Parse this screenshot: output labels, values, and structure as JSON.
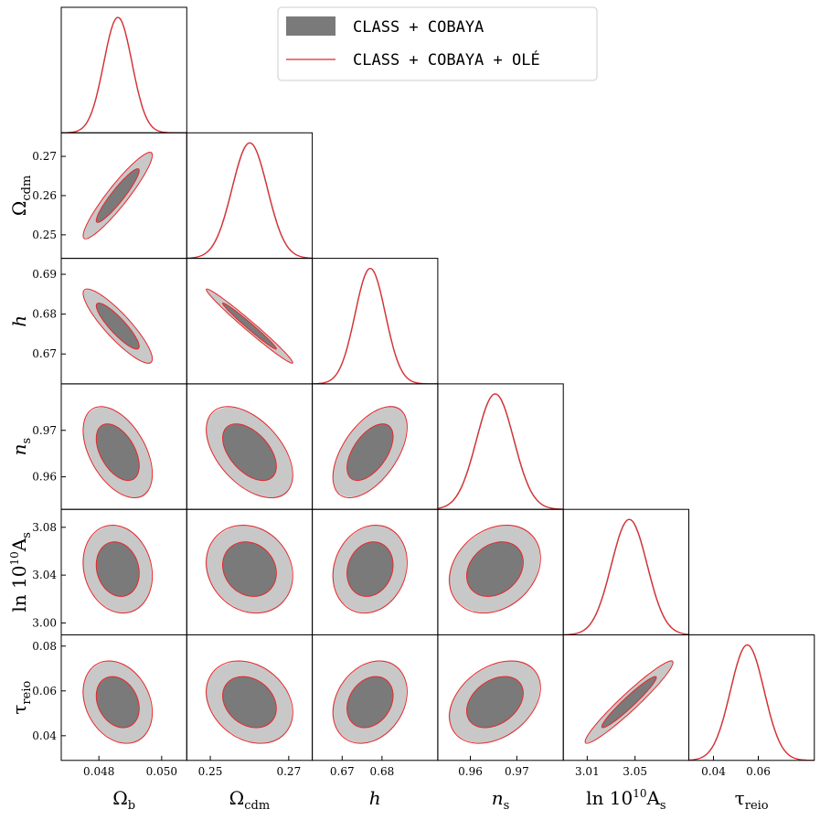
{
  "chart_data": {
    "type": "corner",
    "colors": {
      "filled": "#7a7a7a",
      "filled_outer": "#c8c8c8",
      "line": "#e8262a",
      "frame": "#000000"
    },
    "legend": {
      "location": "top-right",
      "entries": [
        {
          "label": "CLASS + COBAYA",
          "style": "filled"
        },
        {
          "label": "CLASS + COBAYA + OLÉ",
          "style": "line"
        }
      ]
    },
    "parameters": [
      {
        "key": "omega_b",
        "label_main": "Ω",
        "label_sub": "b",
        "label_pre": "",
        "label_sup": "",
        "range": [
          0.0468,
          0.0508
        ],
        "mean": 0.0486,
        "sigma": 0.00045,
        "ticks": [
          0.048,
          0.05
        ],
        "tick_labels": [
          "0.048",
          "0.050"
        ]
      },
      {
        "key": "omega_cdm",
        "label_main": "Ω",
        "label_sub": "cdm",
        "label_pre": "",
        "label_sup": "",
        "range": [
          0.244,
          0.276
        ],
        "mean": 0.26,
        "sigma": 0.0045,
        "ticks": [
          0.25,
          0.26,
          0.27
        ],
        "tick_labels": [
          "0.25",
          "0.26",
          "0.27"
        ],
        "x_ticks": [
          0.25,
          0.27
        ],
        "x_tick_labels": [
          "0.25",
          "0.27"
        ]
      },
      {
        "key": "h",
        "label_main": "h",
        "label_sub": "",
        "label_pre": "",
        "label_sup": "",
        "range": [
          0.6625,
          0.694
        ],
        "mean": 0.677,
        "sigma": 0.0038,
        "ticks": [
          0.67,
          0.68,
          0.69
        ],
        "tick_labels": [
          "0.67",
          "0.68",
          "0.69"
        ],
        "x_ticks": [
          0.67,
          0.68
        ],
        "x_tick_labels": [
          "0.67",
          "0.68"
        ]
      },
      {
        "key": "n_s",
        "label_main": "n",
        "label_sub": "s",
        "label_pre": "",
        "label_sup": "",
        "range": [
          0.953,
          0.98
        ],
        "mean": 0.9653,
        "sigma": 0.004,
        "ticks": [
          0.96,
          0.97
        ],
        "tick_labels": [
          "0.96",
          "0.97"
        ]
      },
      {
        "key": "ln10As",
        "label_main": "A",
        "label_sub": "s",
        "label_pre": "ln 10",
        "label_sup": "10",
        "range": [
          2.99,
          3.095
        ],
        "mean": 3.045,
        "sigma": 0.015,
        "ticks": [
          3.0,
          3.04,
          3.08
        ],
        "tick_labels": [
          "3.00",
          "3.04",
          "3.08"
        ],
        "x_ticks": [
          3.01,
          3.05
        ],
        "x_tick_labels": [
          "3.01",
          "3.05"
        ]
      },
      {
        "key": "tau_reio",
        "label_main": "τ",
        "label_sub": "reio",
        "label_pre": "",
        "label_sup": "",
        "range": [
          0.029,
          0.085
        ],
        "mean": 0.055,
        "sigma": 0.0075,
        "ticks": [
          0.04,
          0.06,
          0.08
        ],
        "tick_labels": [
          "0.04",
          "0.06",
          "0.08"
        ],
        "x_ticks": [
          0.04,
          0.06
        ],
        "x_tick_labels": [
          "0.04",
          "0.06"
        ]
      }
    ],
    "correlations": [
      {
        "pair": [
          "omega_cdm",
          "omega_b"
        ],
        "rho": 0.93
      },
      {
        "pair": [
          "h",
          "omega_b"
        ],
        "rho": -0.88
      },
      {
        "pair": [
          "h",
          "omega_cdm"
        ],
        "rho": -0.985
      },
      {
        "pair": [
          "n_s",
          "omega_b"
        ],
        "rho": -0.48
      },
      {
        "pair": [
          "n_s",
          "omega_cdm"
        ],
        "rho": -0.5
      },
      {
        "pair": [
          "n_s",
          "h"
        ],
        "rho": 0.55
      },
      {
        "pair": [
          "ln10As",
          "omega_b"
        ],
        "rho": -0.15
      },
      {
        "pair": [
          "ln10As",
          "omega_cdm"
        ],
        "rho": -0.15
      },
      {
        "pair": [
          "ln10As",
          "h"
        ],
        "rho": 0.15
      },
      {
        "pair": [
          "ln10As",
          "n_s"
        ],
        "rho": 0.25
      },
      {
        "pair": [
          "tau_reio",
          "omega_b"
        ],
        "rho": -0.25
      },
      {
        "pair": [
          "tau_reio",
          "omega_cdm"
        ],
        "rho": -0.25
      },
      {
        "pair": [
          "tau_reio",
          "h"
        ],
        "rho": 0.25
      },
      {
        "pair": [
          "tau_reio",
          "n_s"
        ],
        "rho": 0.35
      },
      {
        "pair": [
          "tau_reio",
          "ln10As"
        ],
        "rho": 0.96
      }
    ],
    "contour_levels": [
      "68%",
      "95%"
    ]
  }
}
